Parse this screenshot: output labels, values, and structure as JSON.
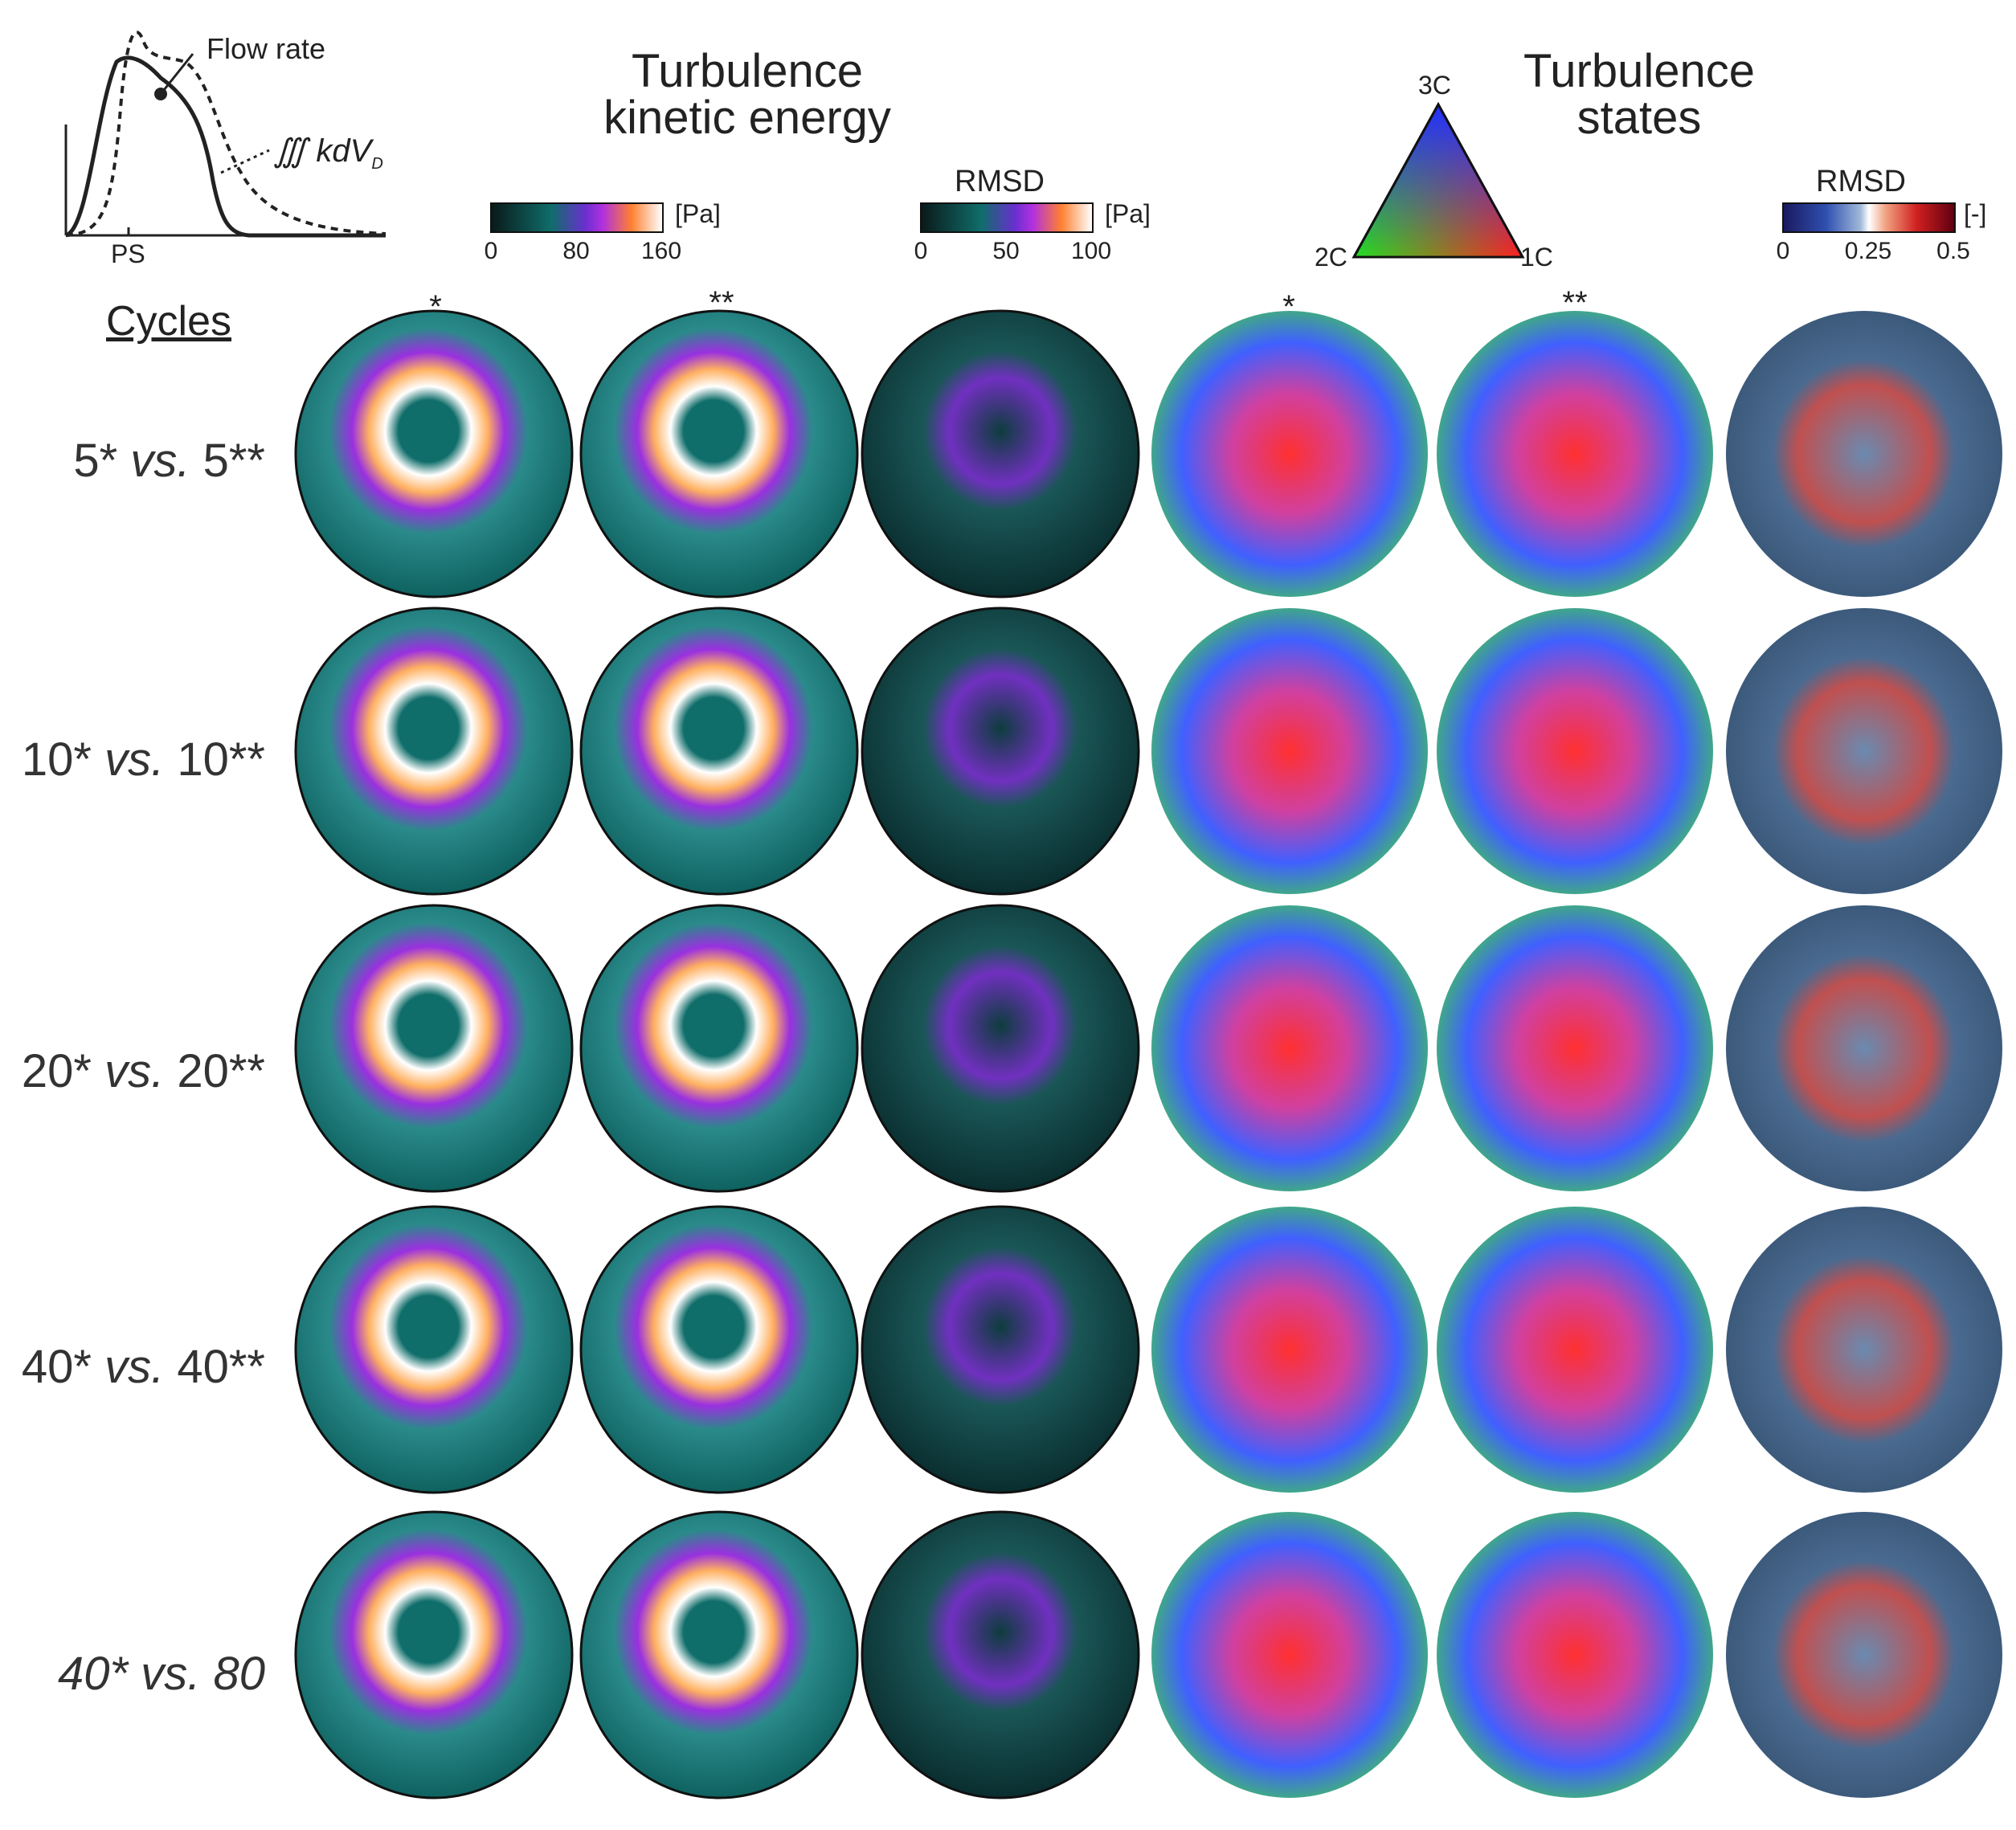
{
  "inset": {
    "flow_label": "Flow rate",
    "integral_label": "∭ kdV",
    "integral_sub": "D",
    "axis_tick": "PS"
  },
  "tke": {
    "title_line1": "Turbulence",
    "title_line2": "kinetic energy",
    "bar_unit": "[Pa]",
    "bar_ticks": [
      "0",
      "80",
      "160"
    ],
    "rmsd_title": "RMSD",
    "rmsd_unit": "[Pa]",
    "rmsd_ticks": [
      "0",
      "50",
      "100"
    ]
  },
  "states": {
    "title_line1": "Turbulence",
    "title_line2": "states",
    "tri_top": "3C",
    "tri_left": "2C",
    "tri_right": "1C",
    "rmsd_title": "RMSD",
    "rmsd_unit": "[-]",
    "rmsd_ticks": [
      "0",
      "0.25",
      "0.5"
    ]
  },
  "header": {
    "cycles_label": "Cycles",
    "star1": "*",
    "star2": "**",
    "star3": "*",
    "star4": "**"
  },
  "rows": [
    {
      "a": "5*",
      "vs": "vs.",
      "b": "5**"
    },
    {
      "a": "10*",
      "vs": "vs.",
      "b": "10**"
    },
    {
      "a": "20*",
      "vs": "vs.",
      "b": "20**"
    },
    {
      "a": "40*",
      "vs": "vs.",
      "b": "40**"
    },
    {
      "a": "40*",
      "vs": "vs.",
      "b": "80"
    }
  ],
  "colors": {
    "tke_low": "#0f6d6a",
    "tke_mid": "#8a2be2",
    "tke_high": "#ffffff",
    "states_1c": "#ff2020",
    "states_2c": "#20e020",
    "states_3c": "#2040ff",
    "rmsd_low": "#3a5a80",
    "rmsd_high": "#c01010"
  }
}
